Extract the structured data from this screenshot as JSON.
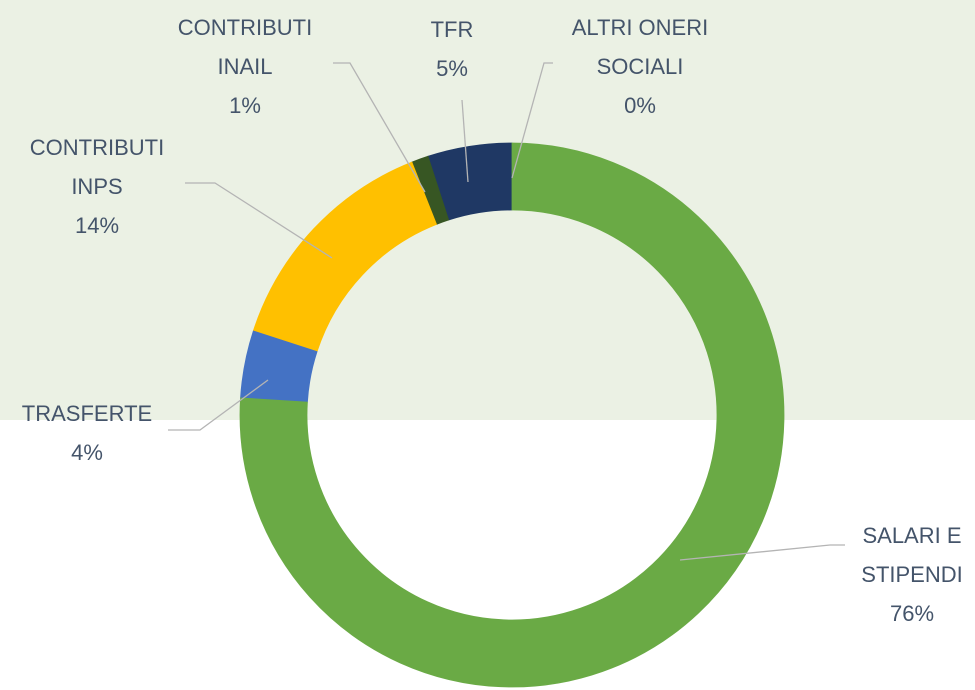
{
  "chart_data": {
    "type": "donut",
    "categories": [
      "SALARI E STIPENDI",
      "TRASFERTE",
      "CONTRIBUTI INPS",
      "CONTRIBUTI INAIL",
      "TFR",
      "ALTRI ONERI SOCIALI"
    ],
    "values": [
      76,
      4,
      14,
      1,
      5,
      0
    ],
    "value_labels": [
      "76%",
      "4%",
      "14%",
      "1%",
      "5%",
      "0%"
    ],
    "colors": [
      "#6aaa45",
      "#4472c4",
      "#ffc000",
      "#375623",
      "#1f3864",
      "#c5a04a"
    ]
  }
}
